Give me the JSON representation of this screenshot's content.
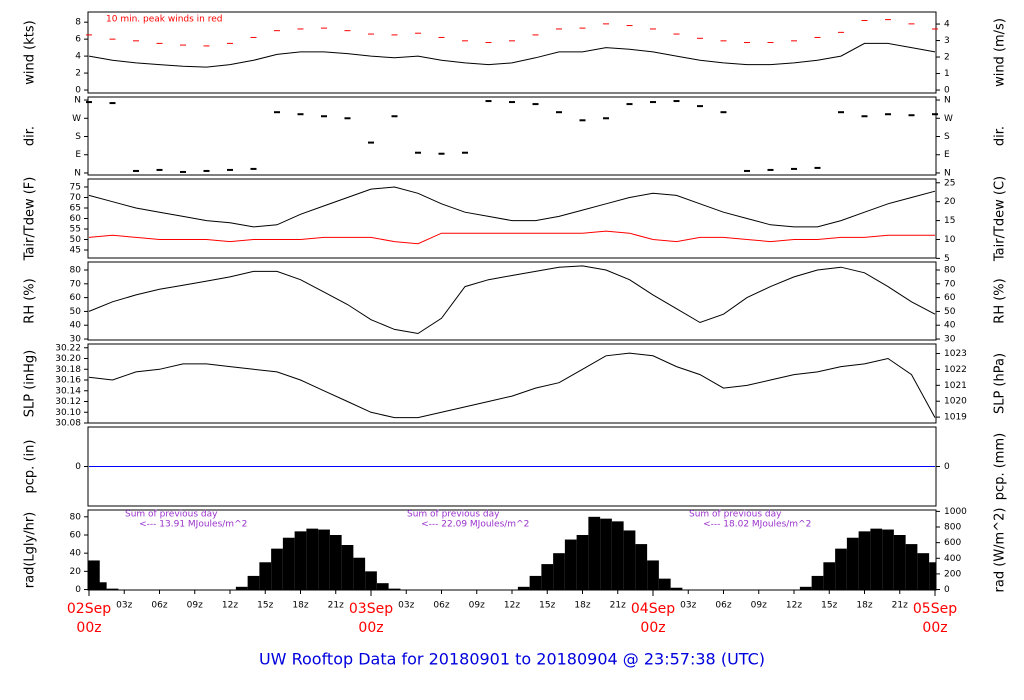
{
  "title": "UW Rooftop Data for 20180901  to  20180904 @ 23:57:38  (UTC)",
  "chart_data": [
    {
      "type": "line",
      "ylabel": "wind (kts)",
      "y2label": "wind (m/s)",
      "annotation": "10 min. peak winds in red",
      "xlim": [
        0,
        72
      ],
      "ylim": [
        -0.35,
        9.2
      ],
      "yticks": [
        0,
        2,
        4,
        6,
        8
      ],
      "y2lim": [
        -0.18,
        4.73
      ],
      "y2ticks": [
        0,
        1,
        2,
        3,
        4
      ],
      "x": [
        0,
        2,
        4,
        6,
        8,
        10,
        12,
        14,
        16,
        18,
        20,
        22,
        24,
        26,
        28,
        30,
        32,
        34,
        36,
        38,
        40,
        42,
        44,
        46,
        48,
        50,
        52,
        54,
        56,
        58,
        60,
        62,
        64,
        66,
        68,
        70,
        72
      ],
      "series": [
        {
          "style": "line",
          "color": "#000000",
          "values": [
            4.0,
            3.5,
            3.2,
            3.0,
            2.8,
            2.7,
            3.0,
            3.5,
            4.2,
            4.5,
            4.5,
            4.3,
            4.0,
            3.8,
            4.0,
            3.5,
            3.2,
            3.0,
            3.2,
            3.8,
            4.5,
            4.5,
            5.0,
            4.8,
            4.5,
            4.0,
            3.5,
            3.2,
            3.0,
            3.0,
            3.2,
            3.5,
            4.0,
            5.5,
            5.5,
            5.0,
            4.5
          ]
        },
        {
          "style": "dash",
          "color": "#ff0000",
          "values": [
            6.5,
            6.0,
            5.8,
            5.5,
            5.3,
            5.2,
            5.5,
            6.2,
            7.0,
            7.2,
            7.3,
            7.0,
            6.6,
            6.5,
            6.7,
            6.2,
            5.8,
            5.6,
            5.8,
            6.5,
            7.2,
            7.3,
            7.8,
            7.6,
            7.2,
            6.6,
            6.1,
            5.8,
            5.6,
            5.6,
            5.8,
            6.2,
            6.8,
            8.2,
            8.3,
            7.8,
            7.2
          ]
        }
      ]
    },
    {
      "type": "scatter",
      "ylabel": "dir.",
      "y2label": "dir.",
      "xlim": [
        0,
        72
      ],
      "ylim": [
        -10,
        375
      ],
      "yticks": [
        {
          "value": 0,
          "label": "N"
        },
        {
          "value": 90,
          "label": "E"
        },
        {
          "value": 180,
          "label": "S"
        },
        {
          "value": 270,
          "label": "W"
        },
        {
          "value": 360,
          "label": "N"
        }
      ],
      "y2lim": [
        -10,
        375
      ],
      "y2ticks": [
        {
          "value": 0,
          "label": "N"
        },
        {
          "value": 90,
          "label": "E"
        },
        {
          "value": 180,
          "label": "S"
        },
        {
          "value": 270,
          "label": "W"
        },
        {
          "value": 360,
          "label": "N"
        }
      ],
      "x": [
        0,
        2,
        4,
        6,
        8,
        10,
        12,
        14,
        16,
        18,
        20,
        22,
        24,
        26,
        28,
        30,
        32,
        34,
        36,
        38,
        40,
        42,
        44,
        46,
        48,
        50,
        52,
        54,
        56,
        58,
        60,
        62,
        64,
        66,
        68,
        70,
        72
      ],
      "series": [
        {
          "style": "points",
          "color": "#000000",
          "values": [
            350,
            345,
            10,
            15,
            5,
            10,
            15,
            20,
            300,
            290,
            280,
            270,
            150,
            280,
            100,
            95,
            100,
            355,
            350,
            340,
            300,
            260,
            270,
            340,
            350,
            355,
            330,
            300,
            10,
            15,
            20,
            25,
            300,
            280,
            290,
            285,
            290
          ]
        }
      ]
    },
    {
      "type": "line",
      "ylabel": "Tair/Tdew (F)",
      "y2label": "Tair/Tdew (C)",
      "xlim": [
        0,
        72
      ],
      "ylim": [
        41.2,
        78.8
      ],
      "yticks": [
        45,
        50,
        55,
        60,
        65,
        70,
        75
      ],
      "y2lim": [
        5.1,
        26
      ],
      "y2ticks": [
        5,
        10,
        15,
        20,
        25
      ],
      "x": [
        0,
        2,
        4,
        6,
        8,
        10,
        12,
        14,
        16,
        18,
        20,
        22,
        24,
        26,
        28,
        30,
        32,
        34,
        36,
        38,
        40,
        42,
        44,
        46,
        48,
        50,
        52,
        54,
        56,
        58,
        60,
        62,
        64,
        66,
        68,
        70,
        72
      ],
      "series": [
        {
          "style": "line",
          "color": "#000000",
          "values": [
            71,
            68,
            65,
            63,
            61,
            59,
            58,
            56,
            57,
            62,
            66,
            70,
            74,
            75,
            72,
            67,
            63,
            61,
            59,
            59,
            61,
            64,
            67,
            70,
            72,
            71,
            67,
            63,
            60,
            57,
            56,
            56,
            59,
            63,
            67,
            70,
            73
          ]
        },
        {
          "style": "line",
          "color": "#ff0000",
          "values": [
            51,
            52,
            51,
            50,
            50,
            50,
            49,
            50,
            50,
            50,
            51,
            51,
            51,
            49,
            48,
            53,
            53,
            53,
            53,
            53,
            53,
            53,
            54,
            53,
            50,
            49,
            51,
            51,
            50,
            49,
            50,
            50,
            51,
            51,
            52,
            52,
            52
          ]
        }
      ]
    },
    {
      "type": "line",
      "ylabel": "RH (%)",
      "y2label": "RH (%)",
      "xlim": [
        0,
        72
      ],
      "ylim": [
        29.3,
        85.8
      ],
      "yticks": [
        30,
        40,
        50,
        60,
        70,
        80
      ],
      "y2lim": [
        29.3,
        85.8
      ],
      "y2ticks": [
        30,
        40,
        50,
        60,
        70,
        80
      ],
      "x": [
        0,
        2,
        4,
        6,
        8,
        10,
        12,
        14,
        16,
        18,
        20,
        22,
        24,
        26,
        28,
        30,
        32,
        34,
        36,
        38,
        40,
        42,
        44,
        46,
        48,
        50,
        52,
        54,
        56,
        58,
        60,
        62,
        64,
        66,
        68,
        70,
        72
      ],
      "series": [
        {
          "style": "line",
          "color": "#000000",
          "values": [
            50,
            57,
            62,
            66,
            69,
            72,
            75,
            79,
            79,
            73,
            64,
            55,
            44,
            37,
            34,
            45,
            68,
            73,
            76,
            79,
            82,
            83,
            80,
            73,
            62,
            52,
            42,
            48,
            60,
            68,
            75,
            80,
            82,
            78,
            68,
            57,
            48
          ]
        }
      ]
    },
    {
      "type": "line",
      "ylabel": "SLP (inHg)",
      "y2label": "SLP (hPa)",
      "xlim": [
        0,
        72
      ],
      "ylim": [
        30.08,
        30.227
      ],
      "yticks": [
        30.08,
        {
          "value": 30.1,
          "label": "30.10"
        },
        30.12,
        30.14,
        30.16,
        30.18,
        {
          "value": 30.2,
          "label": "30.20"
        },
        30.22
      ],
      "y2lim": [
        1018.63,
        1023.6
      ],
      "y2ticks": [
        1019,
        1020,
        1021,
        1022,
        1023
      ],
      "x": [
        0,
        2,
        4,
        6,
        8,
        10,
        12,
        14,
        16,
        18,
        20,
        22,
        24,
        26,
        28,
        30,
        32,
        34,
        36,
        38,
        40,
        42,
        44,
        46,
        48,
        50,
        52,
        54,
        56,
        58,
        60,
        62,
        64,
        66,
        68,
        70,
        72
      ],
      "series": [
        {
          "style": "line",
          "color": "#000000",
          "values": [
            30.165,
            30.16,
            30.175,
            30.18,
            30.19,
            30.19,
            30.185,
            30.18,
            30.175,
            30.16,
            30.14,
            30.12,
            30.1,
            30.09,
            30.09,
            30.1,
            30.11,
            30.12,
            30.13,
            30.145,
            30.155,
            30.18,
            30.205,
            30.21,
            30.205,
            30.185,
            30.17,
            30.145,
            30.15,
            30.16,
            30.17,
            30.175,
            30.185,
            30.19,
            30.2,
            30.17,
            30.09
          ]
        }
      ]
    },
    {
      "type": "line",
      "ylabel": "pcp. (in)",
      "y2label": "pcp. (mm)",
      "xlim": [
        0,
        72
      ],
      "ylim": [
        -1,
        1
      ],
      "yticks": [
        0
      ],
      "y2lim": [
        -25.4,
        25.4
      ],
      "y2ticks": [
        0
      ],
      "x": [
        0,
        72
      ],
      "series": [
        {
          "style": "line",
          "color": "#0000ff",
          "values": [
            0,
            0
          ]
        }
      ]
    },
    {
      "type": "bar",
      "ylabel": "rad(Lgly/hr)",
      "y2label": "rad (W/m^2)",
      "annotations": [
        [
          "Sum of previous day",
          "<--- 13.91 MJoules/m^2"
        ],
        [
          "Sum of previous day",
          "<--- 22.09 MJoules/m^2"
        ],
        [
          "Sum of previous day",
          "<--- 18.02 MJoules/m^2"
        ]
      ],
      "xlim": [
        0,
        72
      ],
      "ylim": [
        -0.5,
        87.5
      ],
      "yticks": [
        0,
        20,
        40,
        60,
        80
      ],
      "y2lim": [
        -5.8,
        1017.6
      ],
      "y2ticks": [
        0,
        200,
        400,
        600,
        800,
        1000
      ],
      "xticks": [
        {
          "value": 3,
          "label": "03z"
        },
        {
          "value": 6,
          "label": "06z"
        },
        {
          "value": 9,
          "label": "09z"
        },
        {
          "value": 12,
          "label": "12z"
        },
        {
          "value": 15,
          "label": "15z"
        },
        {
          "value": 18,
          "label": "18z"
        },
        {
          "value": 21,
          "label": "21z"
        },
        {
          "value": 27,
          "label": "03z"
        },
        {
          "value": 30,
          "label": "06z"
        },
        {
          "value": 33,
          "label": "09z"
        },
        {
          "value": 36,
          "label": "12z"
        },
        {
          "value": 39,
          "label": "15z"
        },
        {
          "value": 42,
          "label": "18z"
        },
        {
          "value": 45,
          "label": "21z"
        },
        {
          "value": 51,
          "label": "03z"
        },
        {
          "value": 54,
          "label": "06z"
        },
        {
          "value": 57,
          "label": "09z"
        },
        {
          "value": 60,
          "label": "12z"
        },
        {
          "value": 63,
          "label": "15z"
        },
        {
          "value": 66,
          "label": "18z"
        },
        {
          "value": 69,
          "label": "21z"
        }
      ],
      "day_ticks": [
        {
          "value": 0,
          "date": "02Sep",
          "hour": "00z"
        },
        {
          "value": 24,
          "date": "03Sep",
          "hour": "00z"
        },
        {
          "value": 48,
          "date": "04Sep",
          "hour": "00z"
        },
        {
          "value": 72,
          "date": "05Sep",
          "hour": "00z"
        }
      ],
      "x": [
        0,
        1,
        2,
        3,
        4,
        5,
        6,
        7,
        8,
        9,
        10,
        11,
        12,
        13,
        14,
        15,
        16,
        17,
        18,
        19,
        20,
        21,
        22,
        23,
        24,
        25,
        26,
        27,
        28,
        29,
        30,
        31,
        32,
        33,
        34,
        35,
        36,
        37,
        38,
        39,
        40,
        41,
        42,
        43,
        44,
        45,
        46,
        47,
        48,
        49,
        50,
        51,
        52,
        53,
        54,
        55,
        56,
        57,
        58,
        59,
        60,
        61,
        62,
        63,
        64,
        65,
        66,
        67,
        68,
        69,
        70,
        71,
        72
      ],
      "series": [
        {
          "style": "bar",
          "color": "#000000",
          "values": [
            32,
            8,
            1,
            0,
            0,
            0,
            0,
            0,
            0,
            0,
            0,
            0,
            0,
            3,
            15,
            30,
            45,
            57,
            64,
            67,
            66,
            60,
            49,
            35,
            20,
            7,
            1,
            0,
            0,
            0,
            0,
            0,
            0,
            0,
            0,
            0,
            0,
            3,
            15,
            28,
            40,
            55,
            60,
            80,
            78,
            75,
            65,
            50,
            32,
            12,
            2,
            0,
            0,
            0,
            0,
            0,
            0,
            0,
            0,
            0,
            0,
            3,
            15,
            30,
            45,
            57,
            64,
            67,
            66,
            60,
            50,
            40,
            30
          ]
        }
      ]
    }
  ]
}
